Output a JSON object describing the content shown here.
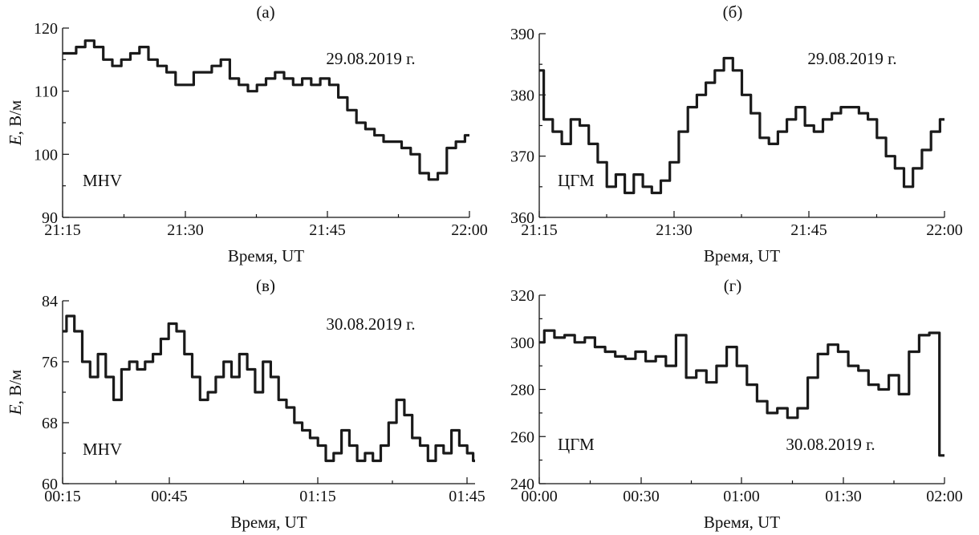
{
  "chart_data": [
    {
      "type": "line",
      "panel_label": "(а)",
      "date": "29.08.2019 г.",
      "station": "MHV",
      "xlabel": "Время, UT",
      "ylabel_italic": "E",
      "ylabel_rest": ", В/м",
      "x_ticks": [
        "21:15",
        "21:30",
        "21:45",
        "22:00"
      ],
      "y_ticks": [
        "90",
        "100",
        "110",
        "120"
      ],
      "xlim": [
        0,
        45
      ],
      "ylim": [
        90,
        120
      ],
      "series": [
        {
          "x": [
            0,
            1,
            2,
            3,
            4,
            5,
            6,
            7,
            8,
            9,
            10,
            11,
            12,
            13,
            14,
            15,
            16,
            17,
            18,
            19,
            20,
            21,
            22,
            23,
            24,
            25,
            26,
            27,
            28,
            29,
            30,
            31,
            32,
            33,
            34,
            35,
            36,
            37,
            38,
            39,
            40,
            41,
            42,
            43,
            44,
            45
          ],
          "y": [
            116,
            116,
            117,
            118,
            117,
            115,
            114,
            115,
            116,
            117,
            115,
            114,
            113,
            111,
            111,
            113,
            113,
            114,
            115,
            112,
            111,
            110,
            111,
            112,
            113,
            112,
            111,
            112,
            111,
            112,
            111,
            109,
            107,
            105,
            104,
            103,
            102,
            102,
            101,
            100,
            97,
            96,
            97,
            101,
            102,
            103
          ]
        }
      ]
    },
    {
      "type": "line",
      "panel_label": "(б)",
      "date": "29.08.2019 г.",
      "station": "ЦГМ",
      "xlabel": "Время, UT",
      "ylabel_italic": "",
      "ylabel_rest": "",
      "x_ticks": [
        "21:15",
        "21:30",
        "21:45",
        "22:00"
      ],
      "y_ticks": [
        "360",
        "370",
        "380",
        "390"
      ],
      "xlim": [
        0,
        45
      ],
      "ylim": [
        360,
        390
      ],
      "series": [
        {
          "x": [
            0,
            1,
            2,
            3,
            4,
            5,
            6,
            7,
            8,
            9,
            10,
            11,
            12,
            13,
            14,
            15,
            16,
            17,
            18,
            19,
            20,
            21,
            22,
            23,
            24,
            25,
            26,
            27,
            28,
            29,
            30,
            31,
            32,
            33,
            34,
            35,
            36,
            37,
            38,
            39,
            40,
            41,
            42,
            43,
            44,
            45
          ],
          "y": [
            384,
            376,
            374,
            372,
            376,
            375,
            372,
            369,
            365,
            367,
            364,
            367,
            365,
            364,
            366,
            369,
            374,
            378,
            380,
            382,
            384,
            386,
            384,
            380,
            377,
            373,
            372,
            374,
            376,
            378,
            375,
            374,
            376,
            377,
            378,
            378,
            377,
            376,
            373,
            370,
            368,
            365,
            368,
            371,
            374,
            376
          ]
        }
      ]
    },
    {
      "type": "line",
      "panel_label": "(в)",
      "date": "30.08.2019 г.",
      "station": "MHV",
      "xlabel": "Время, UT",
      "ylabel_italic": "E",
      "ylabel_rest": ", В/м",
      "x_ticks": [
        "00:15",
        "00:45",
        "01:15",
        "01:45"
      ],
      "y_ticks": [
        "60",
        "68",
        "76",
        "84"
      ],
      "xlim": [
        0,
        105
      ],
      "ylim": [
        60,
        84
      ],
      "series": [
        {
          "x": [
            0,
            2,
            4,
            6,
            8,
            10,
            12,
            14,
            16,
            18,
            20,
            22,
            24,
            26,
            28,
            30,
            32,
            34,
            36,
            38,
            40,
            42,
            44,
            46,
            48,
            50,
            52,
            54,
            56,
            58,
            60,
            62,
            64,
            66,
            68,
            70,
            72,
            74,
            76,
            78,
            80,
            82,
            84,
            86,
            88,
            90,
            92,
            94,
            96,
            98,
            100,
            102,
            104,
            105
          ],
          "y": [
            80,
            82,
            80,
            76,
            74,
            77,
            74,
            71,
            75,
            76,
            75,
            76,
            77,
            79,
            81,
            80,
            77,
            74,
            71,
            72,
            74,
            76,
            74,
            77,
            75,
            72,
            76,
            74,
            71,
            70,
            68,
            67,
            66,
            65,
            63,
            64,
            67,
            65,
            63,
            64,
            63,
            65,
            68,
            71,
            69,
            66,
            65,
            63,
            65,
            64,
            67,
            65,
            64,
            63
          ]
        }
      ]
    },
    {
      "type": "line",
      "panel_label": "(г)",
      "date": "30.08.2019 г.",
      "station": "ЦГМ",
      "xlabel": "Время, UT",
      "ylabel_italic": "",
      "ylabel_rest": "",
      "x_ticks": [
        "00:00",
        "00:30",
        "01:00",
        "01:30",
        "02:00"
      ],
      "y_ticks": [
        "240",
        "260",
        "280",
        "300",
        "320"
      ],
      "xlim": [
        0,
        120
      ],
      "ylim": [
        240,
        320
      ],
      "series": [
        {
          "x": [
            0,
            3,
            6,
            9,
            12,
            15,
            18,
            21,
            24,
            27,
            30,
            33,
            36,
            39,
            42,
            45,
            48,
            51,
            54,
            57,
            60,
            63,
            66,
            69,
            72,
            75,
            78,
            81,
            84,
            87,
            90,
            93,
            96,
            99,
            102,
            105,
            108,
            111,
            114,
            117,
            120
          ],
          "y": [
            300,
            305,
            302,
            303,
            300,
            302,
            298,
            296,
            294,
            293,
            296,
            292,
            294,
            290,
            303,
            285,
            288,
            283,
            290,
            298,
            290,
            282,
            275,
            270,
            272,
            268,
            272,
            285,
            295,
            299,
            296,
            290,
            288,
            282,
            280,
            286,
            278,
            296,
            303,
            304,
            252
          ]
        }
      ]
    }
  ]
}
